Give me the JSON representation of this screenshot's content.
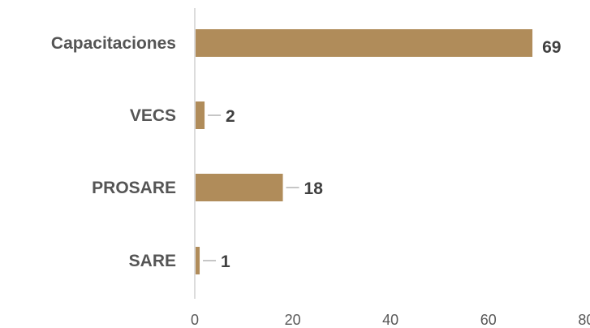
{
  "chart_data": {
    "type": "bar",
    "orientation": "horizontal",
    "categories": [
      "Capacitaciones",
      "VECS",
      "PROSARE",
      "SARE"
    ],
    "values": [
      69,
      2,
      18,
      1
    ],
    "value_labels": [
      "69",
      "2",
      "18",
      "1"
    ],
    "title": "",
    "xlabel": "",
    "ylabel": "",
    "xlim": [
      0,
      80
    ],
    "x_ticks": [
      "0",
      "20",
      "40",
      "60",
      "80"
    ],
    "bar_color": "#b08c5a",
    "axis_color": "#d0d0d0",
    "grid": false,
    "legend": "none"
  }
}
